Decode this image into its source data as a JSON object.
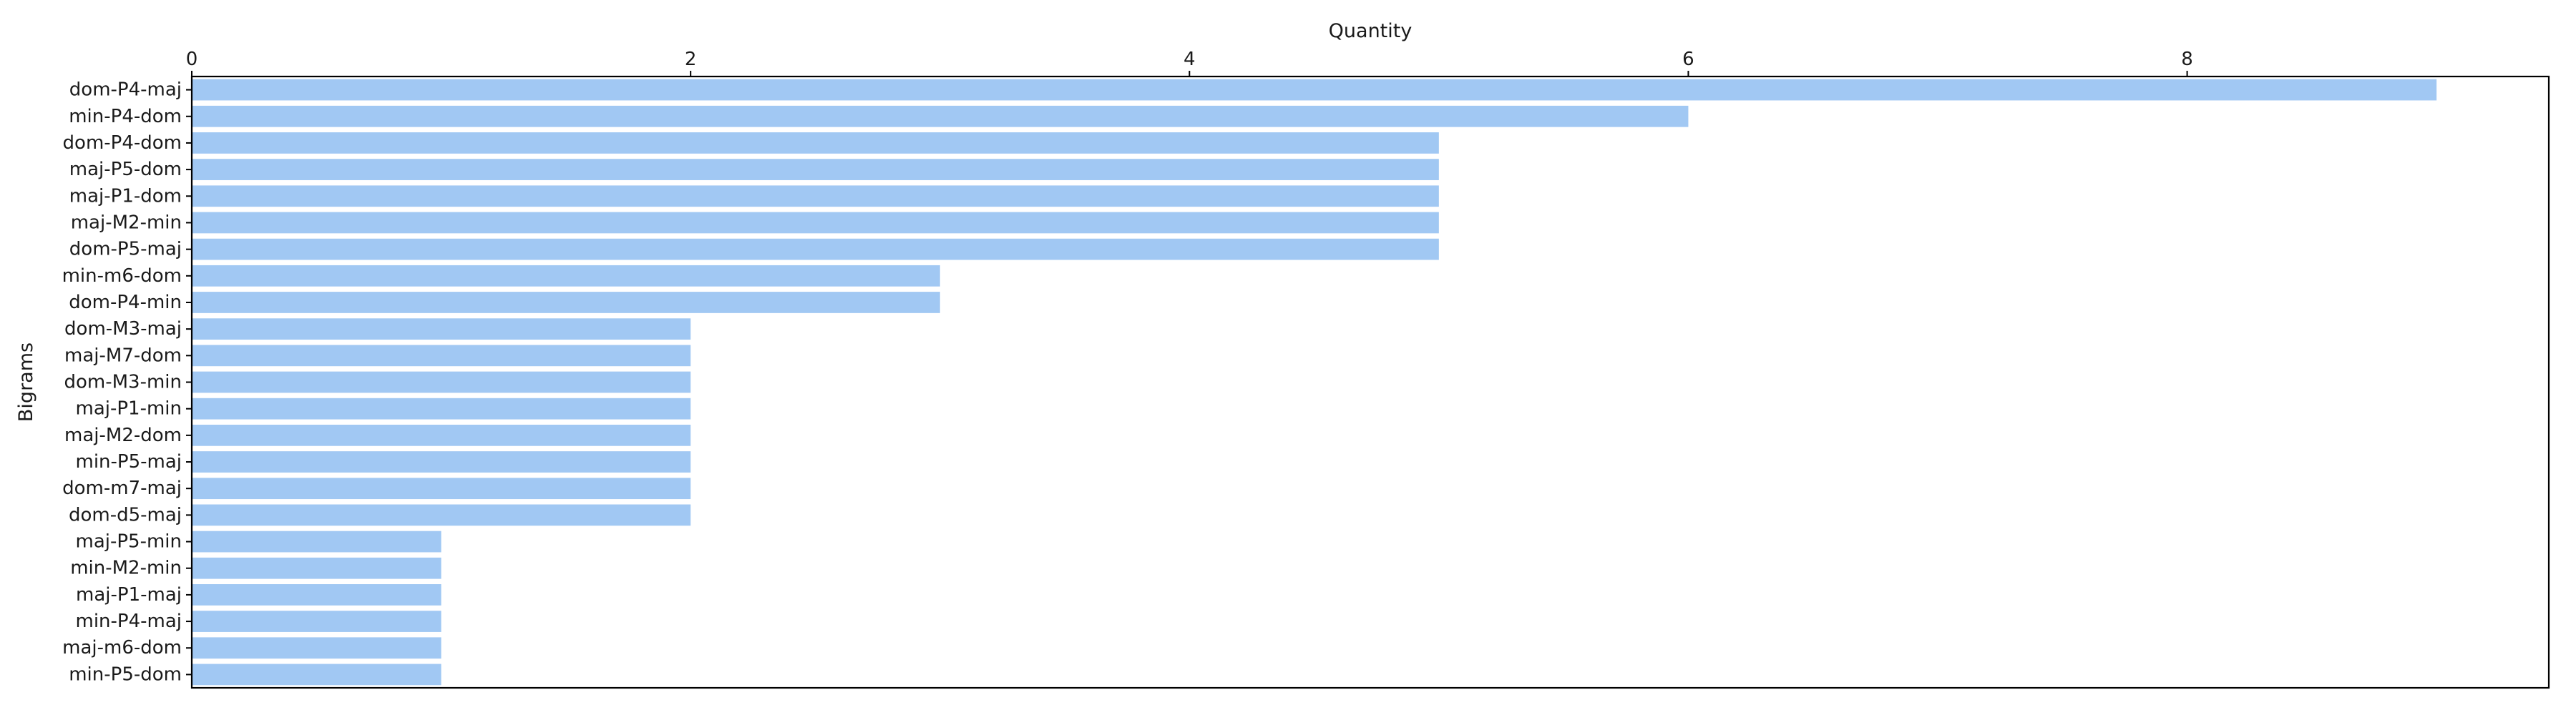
{
  "chart_data": {
    "type": "bar",
    "orientation": "horizontal",
    "xlabel": "Quantity",
    "ylabel": "Bigrams",
    "xaxis_position": "top",
    "xlim": [
      0,
      9.45
    ],
    "xticks": [
      0,
      2,
      4,
      6,
      8
    ],
    "grid": false,
    "bar_color": "#a1c8f3",
    "categories": [
      "dom-P4-maj",
      "min-P4-dom",
      "dom-P4-dom",
      "maj-P5-dom",
      "maj-P1-dom",
      "maj-M2-min",
      "dom-P5-maj",
      "min-m6-dom",
      "dom-P4-min",
      "dom-M3-maj",
      "maj-M7-dom",
      "dom-M3-min",
      "maj-P1-min",
      "maj-M2-dom",
      "min-P5-maj",
      "dom-m7-maj",
      "dom-d5-maj",
      "maj-P5-min",
      "min-M2-min",
      "maj-P1-maj",
      "min-P4-maj",
      "maj-m6-dom",
      "min-P5-dom"
    ],
    "values": [
      9,
      6,
      5,
      5,
      5,
      5,
      5,
      3,
      3,
      2,
      2,
      2,
      2,
      2,
      2,
      2,
      2,
      1,
      1,
      1,
      1,
      1,
      1
    ]
  }
}
